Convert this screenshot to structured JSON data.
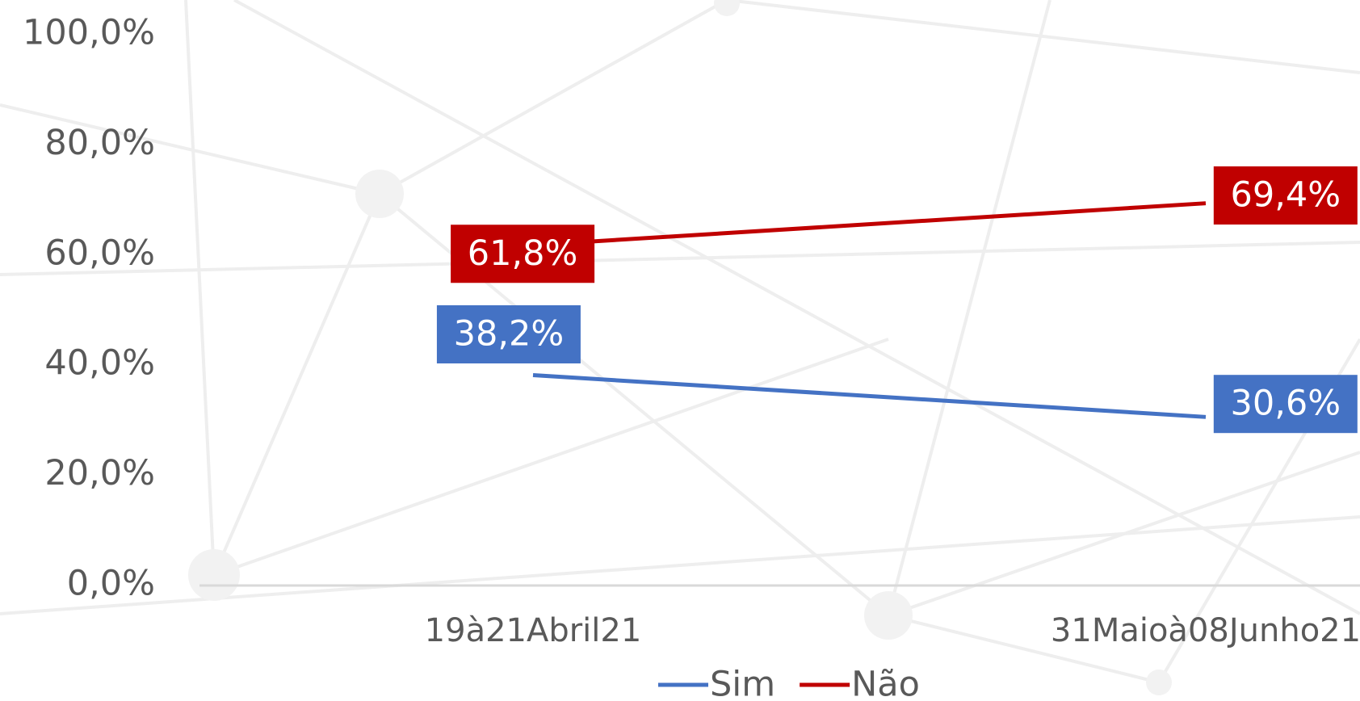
{
  "chart_data": {
    "type": "line",
    "categories": [
      "19à21Abril21",
      "31Maioà08Junho21"
    ],
    "series": [
      {
        "name": "Sim",
        "color": "#4472c4",
        "values": [
          38.2,
          30.6
        ],
        "value_labels": [
          "38,2%",
          "30,6%"
        ]
      },
      {
        "name": "Não",
        "color": "#c00000",
        "values": [
          61.8,
          69.4
        ],
        "value_labels": [
          "61,8%",
          "69,4%"
        ]
      }
    ],
    "ylim": [
      0,
      100
    ],
    "yticks": [
      {
        "value": 0,
        "label": "0,0%"
      },
      {
        "value": 20,
        "label": "20,0%"
      },
      {
        "value": 40,
        "label": "40,0%"
      },
      {
        "value": 60,
        "label": "60,0%"
      },
      {
        "value": 80,
        "label": "80,0%"
      },
      {
        "value": 100,
        "label": "100,0%"
      }
    ],
    "legend": "bottom"
  }
}
